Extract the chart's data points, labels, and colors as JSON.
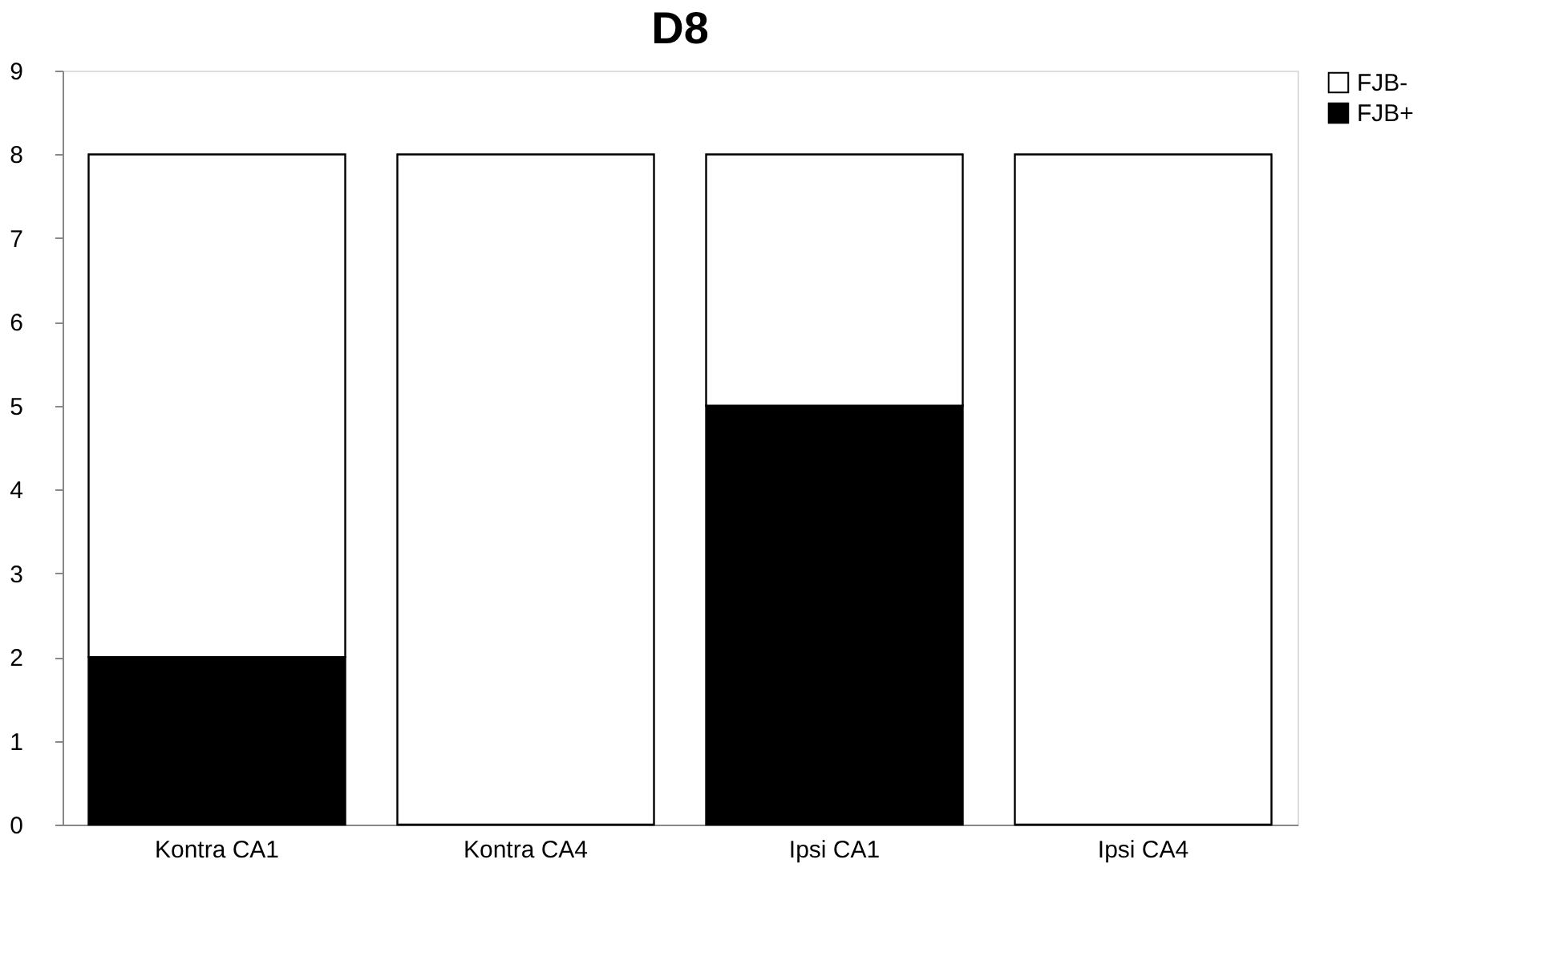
{
  "chart_data": {
    "type": "bar",
    "title": "D8",
    "stacked": true,
    "categories": [
      "Kontra CA1",
      "Kontra CA4",
      "Ipsi CA1",
      "Ipsi CA4"
    ],
    "series": [
      {
        "name": "FJB+",
        "color": "#000000",
        "values": [
          2,
          0,
          5,
          0
        ]
      },
      {
        "name": "FJB-",
        "color": "#ffffff",
        "values": [
          6,
          8,
          3,
          8
        ]
      }
    ],
    "ylim": [
      0,
      9
    ],
    "yticks": [
      0,
      1,
      2,
      3,
      4,
      5,
      6,
      7,
      8,
      9
    ],
    "grid": false,
    "legend": "right"
  }
}
